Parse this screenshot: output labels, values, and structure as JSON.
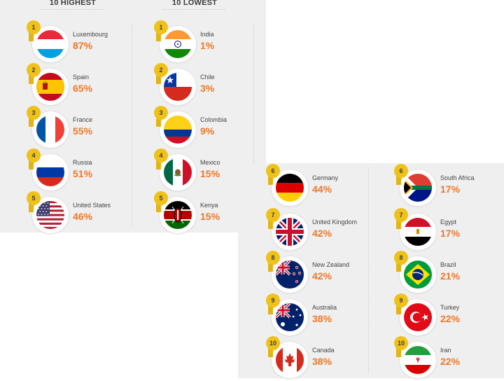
{
  "headings": {
    "highest": "10 HIGHEST",
    "lowest": "10 LOWEST"
  },
  "highest": [
    {
      "rank": "1",
      "country": "Luxembourg",
      "value": "87%",
      "flag": "luxembourg-flag"
    },
    {
      "rank": "2",
      "country": "Spain",
      "value": "65%",
      "flag": "spain-flag"
    },
    {
      "rank": "3",
      "country": "France",
      "value": "55%",
      "flag": "france-flag"
    },
    {
      "rank": "4",
      "country": "Russia",
      "value": "51%",
      "flag": "russia-flag"
    },
    {
      "rank": "5",
      "country": "United States",
      "value": "46%",
      "flag": "usa-flag"
    },
    {
      "rank": "6",
      "country": "Germany",
      "value": "44%",
      "flag": "germany-flag"
    },
    {
      "rank": "7",
      "country": "United Kingdom",
      "value": "42%",
      "flag": "uk-flag"
    },
    {
      "rank": "8",
      "country": "New Zealand",
      "value": "42%",
      "flag": "new-zealand-flag"
    },
    {
      "rank": "9",
      "country": "Australia",
      "value": "38%",
      "flag": "australia-flag"
    },
    {
      "rank": "10",
      "country": "Canada",
      "value": "38%",
      "flag": "canada-flag"
    }
  ],
  "lowest": [
    {
      "rank": "1",
      "country": "India",
      "value": "1%",
      "flag": "india-flag"
    },
    {
      "rank": "2",
      "country": "Chile",
      "value": "3%",
      "flag": "chile-flag"
    },
    {
      "rank": "3",
      "country": "Colombia",
      "value": "9%",
      "flag": "colombia-flag"
    },
    {
      "rank": "4",
      "country": "Mexico",
      "value": "15%",
      "flag": "mexico-flag"
    },
    {
      "rank": "5",
      "country": "Kenya",
      "value": "15%",
      "flag": "kenya-flag"
    },
    {
      "rank": "6",
      "country": "South Africa",
      "value": "17%",
      "flag": "south-africa-flag"
    },
    {
      "rank": "7",
      "country": "Egypt",
      "value": "17%",
      "flag": "egypt-flag"
    },
    {
      "rank": "8",
      "country": "Brazil",
      "value": "21%",
      "flag": "brazil-flag"
    },
    {
      "rank": "9",
      "country": "Turkey",
      "value": "22%",
      "flag": "turkey-flag"
    },
    {
      "rank": "10",
      "country": "Iran",
      "value": "22%",
      "flag": "iran-flag"
    }
  ],
  "colors": {
    "panel": "#efefef",
    "accent": "#ee7728",
    "badge": "#efc21a"
  }
}
